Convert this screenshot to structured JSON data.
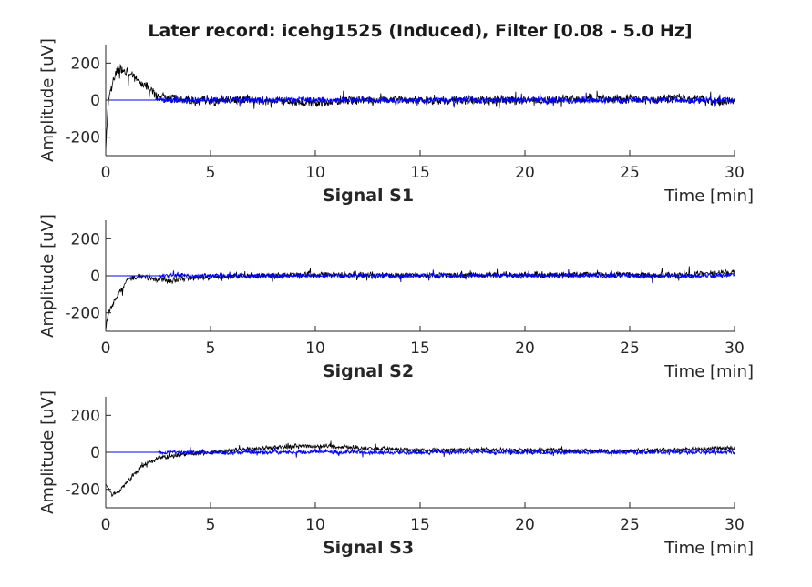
{
  "title": "Later record: icehg1525 (Induced), Filter [0.08 - 5.0 Hz]",
  "chart_data": [
    {
      "type": "line",
      "title": "Signal S1",
      "xlabel": "Time [min]",
      "ylabel": "Amplitude [uV]",
      "xlim": [
        0,
        30
      ],
      "ylim": [
        -300,
        300
      ],
      "xticks": [
        "0",
        "5",
        "10",
        "15",
        "20",
        "25",
        "30"
      ],
      "yticks": [
        "200",
        "0",
        "-200"
      ],
      "colors": {
        "raw": "#000000",
        "filtered": "#0000ff"
      },
      "series": [
        {
          "style": "raw",
          "x": [
            0,
            0.05,
            0.15,
            0.3,
            0.5,
            0.7,
            0.9,
            1.1,
            1.4,
            1.7,
            2.0,
            2.4,
            3,
            4,
            5,
            6,
            8,
            10,
            12,
            14,
            16,
            18,
            20,
            22,
            24,
            26,
            27.5,
            28.5,
            29,
            30
          ],
          "y": [
            -300,
            -150,
            20,
            90,
            150,
            175,
            160,
            140,
            120,
            90,
            70,
            30,
            10,
            0,
            -10,
            5,
            -5,
            -15,
            0,
            5,
            -5,
            0,
            -5,
            5,
            10,
            0,
            10,
            5,
            -20,
            0
          ],
          "noise": 28
        },
        {
          "style": "filtered",
          "x": [
            0,
            2.3,
            2.4,
            30
          ],
          "y": [
            0,
            0,
            0,
            0
          ],
          "noise": 20,
          "noise_start": 2.4
        }
      ]
    },
    {
      "type": "line",
      "title": "Signal S2",
      "xlabel": "Time [min]",
      "ylabel": "Amplitude [uV]",
      "xlim": [
        0,
        30
      ],
      "ylim": [
        -300,
        300
      ],
      "xticks": [
        "0",
        "5",
        "10",
        "15",
        "20",
        "25",
        "30"
      ],
      "yticks": [
        "200",
        "0",
        "-200"
      ],
      "colors": {
        "raw": "#000000",
        "filtered": "#0000ff"
      },
      "series": [
        {
          "style": "raw",
          "x": [
            0,
            0.05,
            0.2,
            0.4,
            0.6,
            0.8,
            1.0,
            1.3,
            1.6,
            2.0,
            2.5,
            3,
            4,
            5,
            7,
            10,
            12,
            15,
            18,
            20,
            22,
            25,
            28,
            30
          ],
          "y": [
            -300,
            -240,
            -190,
            -140,
            -100,
            -60,
            -30,
            -10,
            0,
            -10,
            -20,
            -25,
            -15,
            -5,
            0,
            5,
            5,
            0,
            5,
            5,
            5,
            5,
            5,
            20
          ],
          "noise": 18
        },
        {
          "style": "filtered",
          "x": [
            0,
            2.5,
            2.6,
            30
          ],
          "y": [
            0,
            0,
            0,
            0
          ],
          "noise": 14,
          "noise_start": 2.6
        }
      ]
    },
    {
      "type": "line",
      "title": "Signal S3",
      "xlabel": "Time [min]",
      "ylabel": "Amplitude [uV]",
      "xlim": [
        0,
        30
      ],
      "ylim": [
        -300,
        300
      ],
      "xticks": [
        "0",
        "5",
        "10",
        "15",
        "20",
        "25",
        "30"
      ],
      "yticks": [
        "200",
        "0",
        "-200"
      ],
      "colors": {
        "raw": "#000000",
        "filtered": "#0000ff"
      },
      "series": [
        {
          "style": "raw",
          "x": [
            0,
            0.3,
            0.6,
            0.9,
            1.2,
            1.5,
            1.8,
            2.1,
            2.5,
            3,
            3.5,
            4,
            5,
            6,
            7,
            8,
            9,
            10,
            11,
            12,
            14,
            16,
            18,
            20,
            22,
            24,
            26,
            28,
            30
          ],
          "y": [
            -170,
            -230,
            -215,
            -180,
            -140,
            -100,
            -70,
            -50,
            -30,
            -25,
            -15,
            -5,
            0,
            10,
            20,
            25,
            30,
            35,
            30,
            25,
            15,
            10,
            15,
            10,
            10,
            5,
            10,
            15,
            25
          ],
          "noise": 14
        },
        {
          "style": "filtered",
          "x": [
            0,
            2.4,
            2.5,
            30
          ],
          "y": [
            0,
            0,
            0,
            0
          ],
          "noise": 12,
          "noise_start": 2.5
        }
      ]
    }
  ]
}
